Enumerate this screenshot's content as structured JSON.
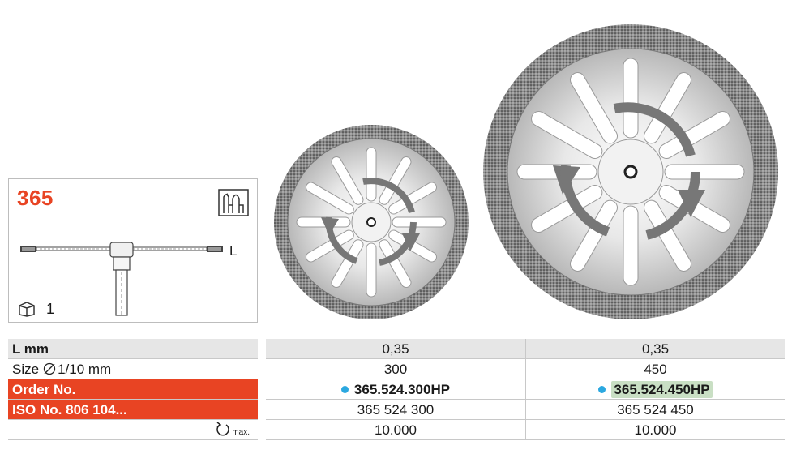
{
  "product": {
    "number": "365",
    "length_label": "L",
    "pack_count": "1"
  },
  "table": {
    "rows": [
      {
        "label": "L mm",
        "values": [
          "0,35",
          "0,35"
        ]
      },
      {
        "label_prefix": "Size",
        "label_suffix": "1/10 mm",
        "values": [
          "300",
          "450"
        ]
      },
      {
        "label": "Order No.",
        "values": [
          "365.524.300HP",
          "365.524.450HP"
        ]
      },
      {
        "label": "ISO No. 806 104...",
        "values": [
          "365 524 300",
          "365 524 450"
        ]
      },
      {
        "label_suffix": "max.",
        "values": [
          "10.000",
          "10.000"
        ]
      }
    ]
  },
  "colors": {
    "accent_red": "#e84423",
    "order_dot": "#2ba8e0",
    "highlight": "#c9dfc4",
    "row_grey": "#e6e6e6"
  },
  "icons": [
    "instrument-type-icon",
    "pack-icon",
    "diameter-icon",
    "rotation-speed-icon"
  ]
}
